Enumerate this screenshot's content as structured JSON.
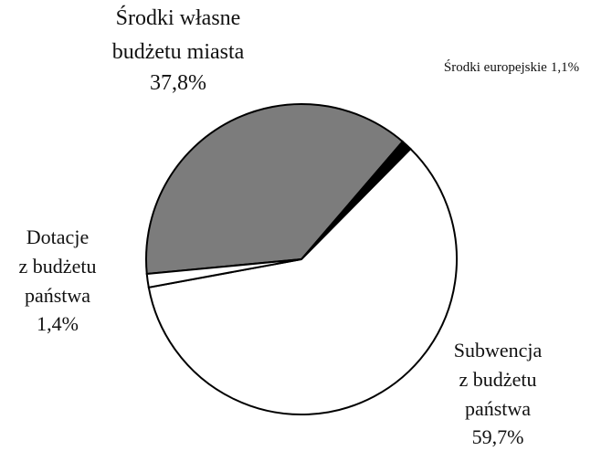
{
  "chart_data": {
    "type": "pie",
    "categories": [
      "Środki  własne\nbudżetu miasta",
      "Środki europejskie",
      "Subwencja\nz budżetu\npaństwa",
      "Dotacje\nz budżetu\npaństwa"
    ],
    "values": [
      37.8,
      1.1,
      59.7,
      1.4
    ],
    "value_labels": [
      "37,8%",
      "1,1%",
      "59,7%",
      "1,4%"
    ],
    "colors": [
      "#7c7c7c",
      "#000000",
      "#ffffff",
      "#ffffff"
    ]
  }
}
